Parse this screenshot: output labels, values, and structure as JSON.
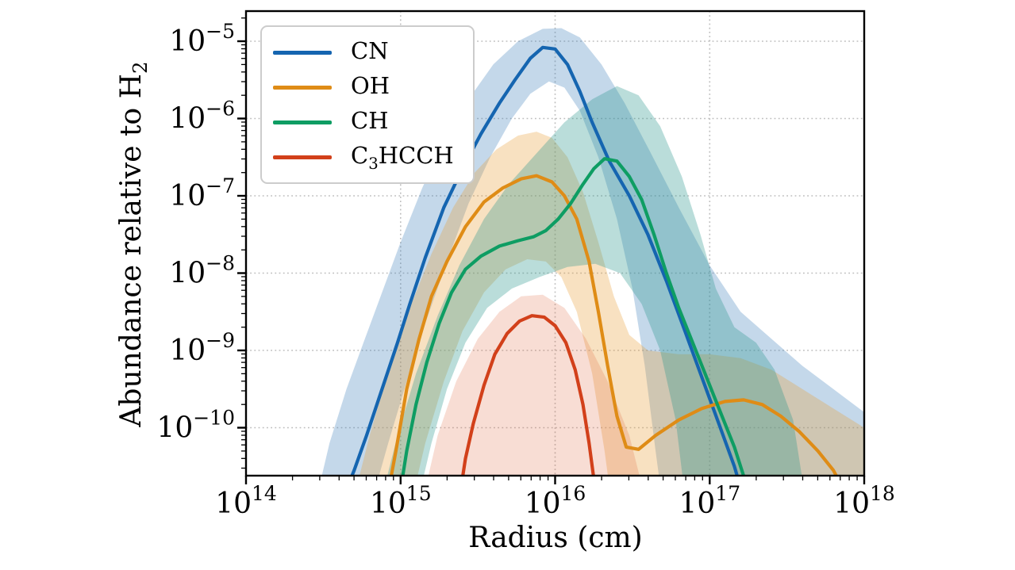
{
  "figure": {
    "background": "#ffffff",
    "description": "Log-log line chart of molecular abundances vs radius with shaded uncertainty bands"
  },
  "axes": {
    "xlabel": "Radius (cm)",
    "ylabel_pre": "Abundance relative to H",
    "ylabel_sub": "2",
    "x_tick_labels": [
      "10^14",
      "10^15",
      "10^16",
      "10^17",
      "10^18"
    ],
    "y_tick_labels": [
      "10^-5",
      "10^-6",
      "10^-7",
      "10^-8",
      "10^-9",
      "10^-10"
    ]
  },
  "legend": {
    "items": [
      {
        "pre": "CN",
        "sub": "",
        "post": "",
        "color": "#1565b0"
      },
      {
        "pre": "OH",
        "sub": "",
        "post": "",
        "color": "#df8c16"
      },
      {
        "pre": "CH",
        "sub": "",
        "post": "",
        "color": "#0e9d63"
      },
      {
        "pre": "C",
        "sub": "3",
        "post": "HCCH",
        "color": "#d2401a"
      }
    ]
  },
  "chart_data": {
    "type": "line",
    "title": "",
    "xlabel": "Radius (cm)",
    "ylabel": "Abundance relative to H2",
    "x_scale": "log",
    "y_scale": "log",
    "xlim_log10": [
      14,
      18
    ],
    "ylim_log10": [
      -10.62,
      -4.61
    ],
    "grid": "dotted major gridlines",
    "legend_position": "upper left",
    "x_ticks": {
      "positions_log10": [
        14,
        15,
        16,
        17,
        18
      ],
      "exponents": [
        "14",
        "15",
        "16",
        "17",
        "18"
      ]
    },
    "y_ticks": {
      "positions_log10": [
        -5,
        -6,
        -7,
        -8,
        -9,
        -10
      ],
      "exponents": [
        "−5",
        "−6",
        "−7",
        "−8",
        "−9",
        "−10"
      ]
    },
    "grid_x_log10": [
      15,
      16,
      17
    ],
    "grid_y_log10": [
      -5,
      -6,
      -7,
      -8,
      -9,
      -10
    ],
    "series": [
      {
        "name": "CN",
        "color": "#1565b0",
        "band_color": "rgba(58,125,185,0.30)",
        "peak": {
          "x": "8e15",
          "y": "9e-6"
        },
        "line_log10": [
          [
            14.6,
            -11.05
          ],
          [
            14.7,
            -10.55
          ],
          [
            14.78,
            -10.1
          ],
          [
            14.88,
            -9.5
          ],
          [
            14.98,
            -8.9
          ],
          [
            15.06,
            -8.4
          ],
          [
            15.16,
            -7.8
          ],
          [
            15.28,
            -7.15
          ],
          [
            15.4,
            -6.65
          ],
          [
            15.52,
            -6.2
          ],
          [
            15.64,
            -5.8
          ],
          [
            15.74,
            -5.5
          ],
          [
            15.84,
            -5.22
          ],
          [
            15.92,
            -5.08
          ],
          [
            16.0,
            -5.1
          ],
          [
            16.08,
            -5.3
          ],
          [
            16.16,
            -5.65
          ],
          [
            16.24,
            -6.05
          ],
          [
            16.35,
            -6.55
          ],
          [
            16.48,
            -7.0
          ],
          [
            16.6,
            -7.5
          ],
          [
            16.72,
            -8.1
          ],
          [
            16.84,
            -8.75
          ],
          [
            16.95,
            -9.35
          ],
          [
            17.06,
            -9.95
          ],
          [
            17.16,
            -10.5
          ],
          [
            17.24,
            -11.05
          ]
        ],
        "band_upper_log10": [
          [
            14.44,
            -11.05
          ],
          [
            14.54,
            -10.2
          ],
          [
            14.65,
            -9.5
          ],
          [
            14.76,
            -8.9
          ],
          [
            14.88,
            -8.25
          ],
          [
            15.0,
            -7.6
          ],
          [
            15.14,
            -6.9
          ],
          [
            15.28,
            -6.3
          ],
          [
            15.44,
            -5.75
          ],
          [
            15.6,
            -5.3
          ],
          [
            15.76,
            -5.0
          ],
          [
            15.92,
            -4.84
          ],
          [
            16.04,
            -4.83
          ],
          [
            16.16,
            -4.95
          ],
          [
            16.3,
            -5.3
          ],
          [
            16.45,
            -5.8
          ],
          [
            16.62,
            -6.45
          ],
          [
            16.8,
            -7.15
          ],
          [
            17.0,
            -7.9
          ],
          [
            17.2,
            -8.5
          ],
          [
            17.4,
            -8.85
          ],
          [
            17.6,
            -9.2
          ],
          [
            17.8,
            -9.5
          ],
          [
            18.0,
            -9.8
          ]
        ],
        "band_lower_log10": [
          [
            14.8,
            -11.05
          ],
          [
            14.92,
            -10.2
          ],
          [
            15.04,
            -9.4
          ],
          [
            15.16,
            -8.65
          ],
          [
            15.3,
            -7.85
          ],
          [
            15.44,
            -7.1
          ],
          [
            15.58,
            -6.5
          ],
          [
            15.72,
            -6.0
          ],
          [
            15.84,
            -5.68
          ],
          [
            15.96,
            -5.52
          ],
          [
            16.06,
            -5.6
          ],
          [
            16.16,
            -5.9
          ],
          [
            16.28,
            -6.5
          ],
          [
            16.4,
            -7.3
          ],
          [
            16.5,
            -8.2
          ],
          [
            16.58,
            -9.2
          ],
          [
            16.65,
            -10.3
          ],
          [
            16.7,
            -11.05
          ],
          [
            18.0,
            -11.05
          ]
        ]
      },
      {
        "name": "OH",
        "color": "#df8c16",
        "band_color": "rgba(233,155,50,0.30)",
        "peak": {
          "x": "7.5e15",
          "y": "1.8e-7"
        },
        "secondary_peak": {
          "x": "1.4e17",
          "y": "2.3e-10"
        },
        "line_log10": [
          [
            14.9,
            -11.05
          ],
          [
            14.97,
            -10.3
          ],
          [
            15.04,
            -9.5
          ],
          [
            15.12,
            -8.85
          ],
          [
            15.2,
            -8.3
          ],
          [
            15.3,
            -7.85
          ],
          [
            15.42,
            -7.4
          ],
          [
            15.54,
            -7.08
          ],
          [
            15.66,
            -6.9
          ],
          [
            15.78,
            -6.78
          ],
          [
            15.88,
            -6.74
          ],
          [
            15.98,
            -6.82
          ],
          [
            16.06,
            -7.0
          ],
          [
            16.14,
            -7.3
          ],
          [
            16.22,
            -7.85
          ],
          [
            16.28,
            -8.5
          ],
          [
            16.34,
            -9.2
          ],
          [
            16.4,
            -9.85
          ],
          [
            16.46,
            -10.25
          ],
          [
            16.54,
            -10.28
          ],
          [
            16.65,
            -10.1
          ],
          [
            16.8,
            -9.9
          ],
          [
            16.95,
            -9.75
          ],
          [
            17.1,
            -9.66
          ],
          [
            17.22,
            -9.64
          ],
          [
            17.34,
            -9.7
          ],
          [
            17.46,
            -9.85
          ],
          [
            17.58,
            -10.05
          ],
          [
            17.7,
            -10.3
          ],
          [
            17.8,
            -10.55
          ],
          [
            17.88,
            -10.85
          ]
        ],
        "band_upper_log10": [
          [
            14.68,
            -11.05
          ],
          [
            14.8,
            -10.1
          ],
          [
            14.93,
            -9.2
          ],
          [
            15.06,
            -8.45
          ],
          [
            15.2,
            -7.75
          ],
          [
            15.34,
            -7.15
          ],
          [
            15.48,
            -6.7
          ],
          [
            15.62,
            -6.4
          ],
          [
            15.76,
            -6.22
          ],
          [
            15.88,
            -6.17
          ],
          [
            15.98,
            -6.25
          ],
          [
            16.08,
            -6.5
          ],
          [
            16.18,
            -6.95
          ],
          [
            16.28,
            -7.6
          ],
          [
            16.38,
            -8.3
          ],
          [
            16.48,
            -8.8
          ],
          [
            16.6,
            -9.0
          ],
          [
            16.8,
            -9.05
          ],
          [
            17.0,
            -9.05
          ],
          [
            17.2,
            -9.1
          ],
          [
            17.4,
            -9.25
          ],
          [
            17.6,
            -9.5
          ],
          [
            17.8,
            -9.75
          ],
          [
            18.0,
            -10.0
          ]
        ],
        "band_lower_log10": [
          [
            15.06,
            -11.05
          ],
          [
            15.16,
            -10.2
          ],
          [
            15.28,
            -9.4
          ],
          [
            15.4,
            -8.75
          ],
          [
            15.54,
            -8.25
          ],
          [
            15.68,
            -7.95
          ],
          [
            15.82,
            -7.82
          ],
          [
            15.94,
            -7.85
          ],
          [
            16.04,
            -8.05
          ],
          [
            16.14,
            -8.5
          ],
          [
            16.24,
            -9.3
          ],
          [
            16.32,
            -10.3
          ],
          [
            16.37,
            -11.05
          ],
          [
            18.0,
            -11.05
          ]
        ]
      },
      {
        "name": "CH",
        "color": "#0e9d63",
        "band_color": "rgba(40,150,140,0.32)",
        "peak": {
          "x": "2e16",
          "y": "3e-7"
        },
        "line_log10": [
          [
            14.98,
            -11.05
          ],
          [
            15.04,
            -10.3
          ],
          [
            15.1,
            -9.7
          ],
          [
            15.17,
            -9.15
          ],
          [
            15.25,
            -8.65
          ],
          [
            15.33,
            -8.25
          ],
          [
            15.42,
            -7.95
          ],
          [
            15.52,
            -7.78
          ],
          [
            15.64,
            -7.65
          ],
          [
            15.76,
            -7.58
          ],
          [
            15.86,
            -7.53
          ],
          [
            15.94,
            -7.45
          ],
          [
            16.02,
            -7.3
          ],
          [
            16.1,
            -7.1
          ],
          [
            16.18,
            -6.85
          ],
          [
            16.25,
            -6.65
          ],
          [
            16.32,
            -6.52
          ],
          [
            16.4,
            -6.55
          ],
          [
            16.48,
            -6.75
          ],
          [
            16.56,
            -7.05
          ],
          [
            16.64,
            -7.5
          ],
          [
            16.72,
            -8.0
          ],
          [
            16.8,
            -8.45
          ],
          [
            16.88,
            -8.85
          ],
          [
            16.96,
            -9.25
          ],
          [
            17.06,
            -9.75
          ],
          [
            17.16,
            -10.25
          ],
          [
            17.24,
            -10.75
          ],
          [
            17.27,
            -11.05
          ]
        ],
        "band_upper_log10": [
          [
            14.86,
            -11.05
          ],
          [
            14.98,
            -10.1
          ],
          [
            15.1,
            -9.3
          ],
          [
            15.24,
            -8.55
          ],
          [
            15.38,
            -7.9
          ],
          [
            15.54,
            -7.3
          ],
          [
            15.7,
            -6.85
          ],
          [
            15.88,
            -6.45
          ],
          [
            16.06,
            -6.05
          ],
          [
            16.24,
            -5.75
          ],
          [
            16.4,
            -5.58
          ],
          [
            16.54,
            -5.7
          ],
          [
            16.68,
            -6.1
          ],
          [
            16.82,
            -6.75
          ],
          [
            16.94,
            -7.5
          ],
          [
            17.04,
            -8.2
          ],
          [
            17.16,
            -8.7
          ],
          [
            17.3,
            -8.9
          ],
          [
            17.42,
            -9.25
          ],
          [
            17.54,
            -9.9
          ],
          [
            17.63,
            -11.05
          ]
        ],
        "band_lower_log10": [
          [
            15.1,
            -11.05
          ],
          [
            15.2,
            -10.2
          ],
          [
            15.3,
            -9.5
          ],
          [
            15.42,
            -8.9
          ],
          [
            15.56,
            -8.45
          ],
          [
            15.72,
            -8.2
          ],
          [
            15.9,
            -8.05
          ],
          [
            16.08,
            -7.92
          ],
          [
            16.26,
            -7.88
          ],
          [
            16.42,
            -8.0
          ],
          [
            16.56,
            -8.4
          ],
          [
            16.68,
            -9.0
          ],
          [
            16.78,
            -9.9
          ],
          [
            16.85,
            -11.05
          ],
          [
            17.63,
            -11.05
          ]
        ]
      },
      {
        "name": "C3HCCH",
        "color": "#d2401a",
        "band_color": "rgba(222,100,60,0.22)",
        "peak": {
          "x": "7e15",
          "y": "2.8e-9"
        },
        "line_log10": [
          [
            15.37,
            -11.05
          ],
          [
            15.42,
            -10.4
          ],
          [
            15.47,
            -9.95
          ],
          [
            15.54,
            -9.45
          ],
          [
            15.61,
            -9.05
          ],
          [
            15.69,
            -8.78
          ],
          [
            15.77,
            -8.62
          ],
          [
            15.85,
            -8.55
          ],
          [
            15.93,
            -8.57
          ],
          [
            16.0,
            -8.68
          ],
          [
            16.07,
            -8.9
          ],
          [
            16.13,
            -9.25
          ],
          [
            16.18,
            -9.7
          ],
          [
            16.22,
            -10.2
          ],
          [
            16.26,
            -10.8
          ],
          [
            16.28,
            -11.05
          ]
        ],
        "band_upper_log10": [
          [
            15.13,
            -11.05
          ],
          [
            15.24,
            -10.1
          ],
          [
            15.36,
            -9.4
          ],
          [
            15.5,
            -8.85
          ],
          [
            15.64,
            -8.5
          ],
          [
            15.78,
            -8.3
          ],
          [
            15.92,
            -8.28
          ],
          [
            16.06,
            -8.45
          ],
          [
            16.2,
            -8.85
          ],
          [
            16.34,
            -9.4
          ],
          [
            16.48,
            -10.1
          ],
          [
            16.6,
            -11.05
          ]
        ],
        "band_lower_log10": [
          [
            15.2,
            -11.05
          ],
          [
            16.6,
            -11.05
          ]
        ]
      }
    ]
  }
}
